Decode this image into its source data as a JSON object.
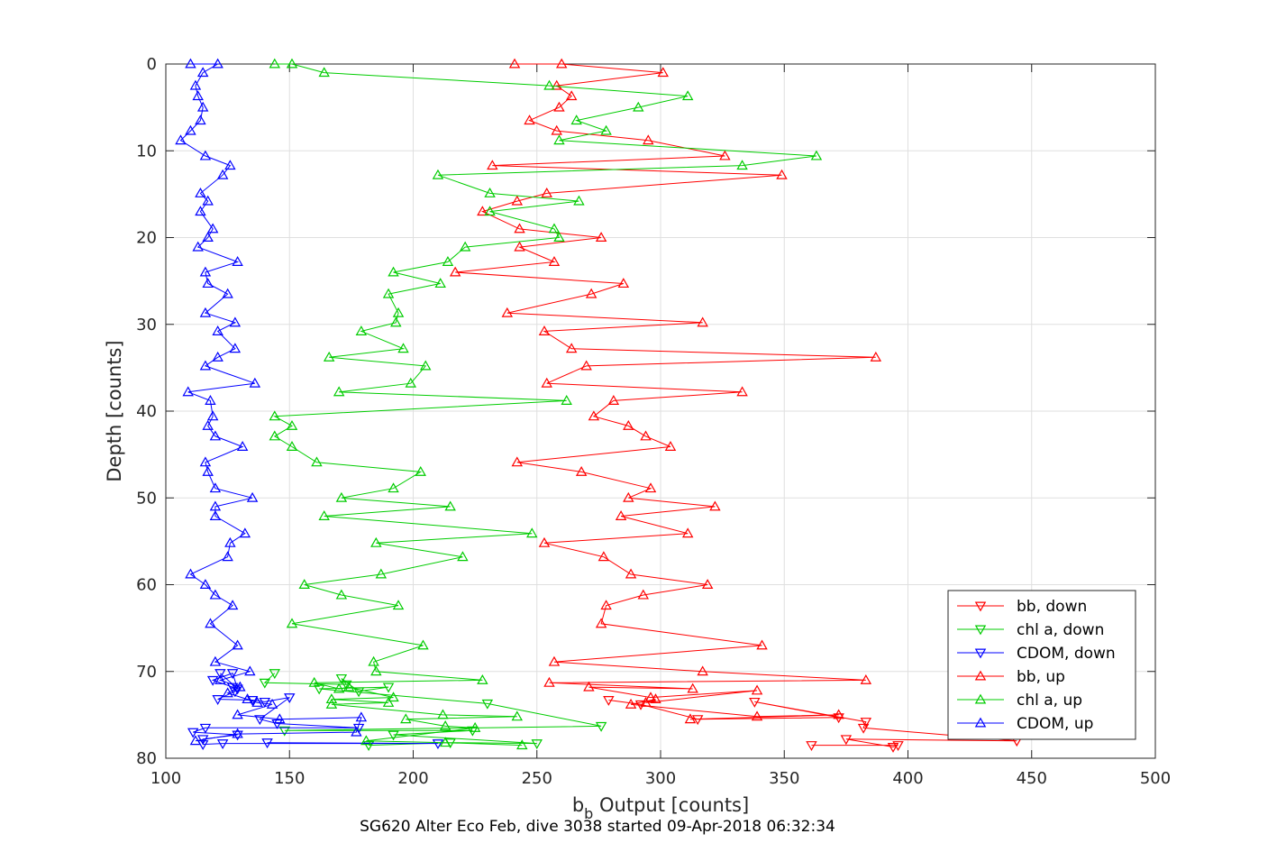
{
  "chart_data": {
    "type": "line",
    "xlabel_main": "b",
    "xlabel_sub": "b",
    "xlabel_rest": " Output [counts]",
    "ylabel": "Depth [counts]",
    "caption": "SG620 Alter Eco Feb, dive 3038 started 09-Apr-2018 06:32:34",
    "xlim": [
      100,
      500
    ],
    "ylim": [
      0,
      80
    ],
    "y_reversed": true,
    "grid": true,
    "xticks": [
      "100",
      "150",
      "200",
      "250",
      "300",
      "350",
      "400",
      "450",
      "500"
    ],
    "yticks": [
      "0",
      "10",
      "20",
      "30",
      "40",
      "50",
      "60",
      "70",
      "80"
    ],
    "legend_position": "lower-right",
    "series": [
      {
        "name": "bb, down",
        "color": "#ff0000",
        "marker": "triangle-down",
        "points": [
          [
            361,
            78.5
          ],
          [
            396,
            78.5
          ],
          [
            394,
            78.7
          ],
          [
            375,
            77.8
          ],
          [
            444,
            78
          ],
          [
            382,
            76.5
          ],
          [
            383,
            75.8
          ],
          [
            338,
            73.5
          ],
          [
            372,
            75.3
          ],
          [
            315,
            75.5
          ],
          [
            292,
            73.8
          ],
          [
            279,
            73.3
          ]
        ]
      },
      {
        "name": "chl a, down",
        "color": "#00cc00",
        "marker": "triangle-down",
        "points": [
          [
            182,
            78.5
          ],
          [
            215,
            78.2
          ],
          [
            250,
            78.3
          ],
          [
            192,
            77.3
          ],
          [
            224,
            76.8
          ],
          [
            148,
            76.8
          ],
          [
            276,
            76.3
          ],
          [
            230,
            73.7
          ],
          [
            162,
            72
          ],
          [
            190,
            71.8
          ],
          [
            178,
            72.3
          ],
          [
            171,
            70.8
          ],
          [
            173,
            71.5
          ],
          [
            140,
            71.3
          ],
          [
            144,
            70.2
          ]
        ]
      },
      {
        "name": "CDOM, down",
        "color": "#0000ff",
        "marker": "triangle-down",
        "points": [
          [
            141,
            78.2
          ],
          [
            210,
            78.3
          ],
          [
            123,
            78.3
          ],
          [
            115,
            78.4
          ],
          [
            115,
            77.8
          ],
          [
            129,
            77.3
          ],
          [
            111,
            77
          ],
          [
            116,
            76.5
          ],
          [
            178,
            76.5
          ],
          [
            145,
            76
          ],
          [
            138,
            75.5
          ],
          [
            150,
            73
          ],
          [
            140,
            73.5
          ],
          [
            135,
            73.3
          ],
          [
            121,
            73.2
          ],
          [
            128,
            72.3
          ],
          [
            127,
            71.8
          ],
          [
            119,
            71
          ],
          [
            127,
            70.2
          ],
          [
            129,
            72
          ],
          [
            122,
            70.2
          ]
        ]
      },
      {
        "name": "bb, up",
        "color": "#ff0000",
        "marker": "triangle-up",
        "points": [
          [
            241,
            0
          ],
          [
            260,
            0
          ],
          [
            301,
            1
          ],
          [
            258,
            2.5
          ],
          [
            264,
            3.7
          ],
          [
            259,
            5
          ],
          [
            247,
            6.5
          ],
          [
            258,
            7.7
          ],
          [
            295,
            8.8
          ],
          [
            326,
            10.6
          ],
          [
            232,
            11.7
          ],
          [
            349,
            12.8
          ],
          [
            254,
            14.9
          ],
          [
            242,
            15.8
          ],
          [
            228,
            17
          ],
          [
            243,
            19
          ],
          [
            276,
            20
          ],
          [
            243,
            21.1
          ],
          [
            257,
            22.8
          ],
          [
            217,
            24
          ],
          [
            285,
            25.3
          ],
          [
            272,
            26.5
          ],
          [
            238,
            28.7
          ],
          [
            317,
            29.8
          ],
          [
            253,
            30.8
          ],
          [
            264,
            32.8
          ],
          [
            387,
            33.8
          ],
          [
            270,
            34.8
          ],
          [
            254,
            36.8
          ],
          [
            333,
            37.8
          ],
          [
            281,
            38.8
          ],
          [
            273,
            40.6
          ],
          [
            287,
            41.7
          ],
          [
            294,
            42.9
          ],
          [
            304,
            44.1
          ],
          [
            242,
            45.9
          ],
          [
            268,
            47
          ],
          [
            296,
            48.9
          ],
          [
            287,
            50
          ],
          [
            322,
            51
          ],
          [
            284,
            52.1
          ],
          [
            311,
            54.1
          ],
          [
            253,
            55.2
          ],
          [
            277,
            56.8
          ],
          [
            288,
            58.8
          ],
          [
            319,
            60
          ],
          [
            293,
            61.2
          ],
          [
            278,
            62.4
          ],
          [
            276,
            64.5
          ],
          [
            341,
            67
          ],
          [
            257,
            68.9
          ],
          [
            317,
            70
          ],
          [
            383,
            71
          ],
          [
            255,
            71.3
          ],
          [
            313,
            72
          ],
          [
            271,
            71.8
          ],
          [
            296,
            73
          ],
          [
            339,
            72.2
          ],
          [
            294,
            73.6
          ],
          [
            298,
            73.2
          ],
          [
            288,
            73.8
          ],
          [
            339,
            75.2
          ],
          [
            372,
            75
          ],
          [
            312,
            75.5
          ]
        ]
      },
      {
        "name": "chl a, up",
        "color": "#00cc00",
        "marker": "triangle-up",
        "points": [
          [
            144,
            0
          ],
          [
            151,
            0
          ],
          [
            164,
            1
          ],
          [
            255,
            2.5
          ],
          [
            311,
            3.7
          ],
          [
            291,
            5
          ],
          [
            266,
            6.5
          ],
          [
            278,
            7.7
          ],
          [
            259,
            8.8
          ],
          [
            363,
            10.6
          ],
          [
            333,
            11.7
          ],
          [
            210,
            12.8
          ],
          [
            231,
            14.9
          ],
          [
            267,
            15.8
          ],
          [
            231,
            17
          ],
          [
            257,
            19
          ],
          [
            259,
            20
          ],
          [
            221,
            21.1
          ],
          [
            214,
            22.8
          ],
          [
            192,
            24
          ],
          [
            211,
            25.3
          ],
          [
            190,
            26.5
          ],
          [
            194,
            28.7
          ],
          [
            193,
            29.8
          ],
          [
            179,
            30.8
          ],
          [
            196,
            32.8
          ],
          [
            166,
            33.8
          ],
          [
            205,
            34.8
          ],
          [
            199,
            36.8
          ],
          [
            170,
            37.8
          ],
          [
            262,
            38.8
          ],
          [
            144,
            40.6
          ],
          [
            151,
            41.7
          ],
          [
            144,
            42.9
          ],
          [
            151,
            44.1
          ],
          [
            161,
            45.9
          ],
          [
            203,
            47
          ],
          [
            192,
            48.9
          ],
          [
            171,
            50
          ],
          [
            215,
            51
          ],
          [
            164,
            52.1
          ],
          [
            248,
            54.1
          ],
          [
            185,
            55.2
          ],
          [
            220,
            56.8
          ],
          [
            187,
            58.8
          ],
          [
            156,
            60
          ],
          [
            171,
            61.2
          ],
          [
            194,
            62.4
          ],
          [
            151,
            64.5
          ],
          [
            204,
            67
          ],
          [
            184,
            68.9
          ],
          [
            185,
            70
          ],
          [
            228,
            71
          ],
          [
            160,
            71.3
          ],
          [
            170,
            72
          ],
          [
            174,
            71.8
          ],
          [
            192,
            73
          ],
          [
            167,
            73.2
          ],
          [
            190,
            73.6
          ],
          [
            167,
            73.8
          ],
          [
            212,
            75
          ],
          [
            242,
            75.2
          ],
          [
            197,
            75.5
          ],
          [
            213,
            76.3
          ],
          [
            225,
            76.5
          ],
          [
            181,
            78
          ],
          [
            213,
            78.2
          ],
          [
            244,
            78.5
          ]
        ]
      },
      {
        "name": "CDOM, up",
        "color": "#0000ff",
        "marker": "triangle-up",
        "points": [
          [
            110,
            0
          ],
          [
            121,
            0
          ],
          [
            115,
            1
          ],
          [
            112,
            2.5
          ],
          [
            113,
            3.7
          ],
          [
            115,
            5
          ],
          [
            114,
            6.5
          ],
          [
            110,
            7.7
          ],
          [
            106,
            8.8
          ],
          [
            116,
            10.6
          ],
          [
            126,
            11.7
          ],
          [
            123,
            12.8
          ],
          [
            114,
            14.9
          ],
          [
            117,
            15.8
          ],
          [
            114,
            17
          ],
          [
            119,
            19
          ],
          [
            117,
            20
          ],
          [
            113,
            21.1
          ],
          [
            129,
            22.8
          ],
          [
            116,
            24
          ],
          [
            117,
            25.3
          ],
          [
            125,
            26.5
          ],
          [
            116,
            28.7
          ],
          [
            128,
            29.8
          ],
          [
            121,
            30.8
          ],
          [
            128,
            32.8
          ],
          [
            121,
            33.8
          ],
          [
            116,
            34.8
          ],
          [
            136,
            36.8
          ],
          [
            109,
            37.8
          ],
          [
            118,
            38.8
          ],
          [
            119,
            40.6
          ],
          [
            117,
            41.7
          ],
          [
            120,
            42.9
          ],
          [
            131,
            44.1
          ],
          [
            116,
            45.9
          ],
          [
            117,
            47
          ],
          [
            120,
            48.9
          ],
          [
            135,
            50
          ],
          [
            120,
            51
          ],
          [
            120,
            52.1
          ],
          [
            132,
            54.1
          ],
          [
            126,
            55.2
          ],
          [
            125,
            56.8
          ],
          [
            110,
            58.8
          ],
          [
            116,
            60
          ],
          [
            120,
            61.2
          ],
          [
            127,
            62.4
          ],
          [
            118,
            64.5
          ],
          [
            129,
            67
          ],
          [
            120,
            68.9
          ],
          [
            134,
            70
          ],
          [
            122,
            71
          ],
          [
            130,
            71.8
          ],
          [
            125,
            72.5
          ],
          [
            133,
            73.2
          ],
          [
            137,
            73.6
          ],
          [
            143,
            73.8
          ],
          [
            129,
            75
          ],
          [
            146,
            75.5
          ],
          [
            179,
            75.3
          ],
          [
            177,
            77
          ],
          [
            129,
            77.2
          ],
          [
            112,
            78
          ]
        ]
      }
    ]
  }
}
